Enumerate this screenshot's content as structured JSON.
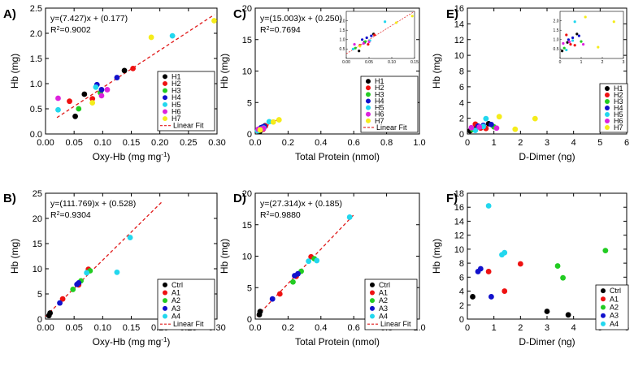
{
  "chart_data": [
    {
      "panel": "A)",
      "type": "scatter",
      "xlabel": "Oxy-Hb (mg mg",
      "xlabel_sup": "-1",
      "xlabel_end": ")",
      "ylabel": "Hb (mg)",
      "xlim": [
        0,
        0.3
      ],
      "ylim": [
        0,
        2.5
      ],
      "xticks": [
        0,
        0.05,
        0.1,
        0.15,
        0.2,
        0.25,
        0.3
      ],
      "xtick_labels": [
        "0.00",
        "0.05",
        "0.10",
        "0.15",
        "0.20",
        "0.25",
        "0.30"
      ],
      "yticks": [
        0,
        0.5,
        1,
        1.5,
        2,
        2.5
      ],
      "ytick_labels": [
        "0.0",
        "0.5",
        "1.0",
        "1.5",
        "2.0",
        "2.5"
      ],
      "equation": "y=(7.427)x + (0.177)",
      "r2_label": "R",
      "r2_sup": "2",
      "r2_value": "=0.9002",
      "fit": {
        "slope": 7.427,
        "intercept": 0.177,
        "x_range": [
          0.02,
          0.295
        ]
      },
      "legend_fit": "Linear Fit",
      "series": [
        {
          "name": "H1",
          "color": "#000000",
          "points": [
            [
              0.052,
              0.35
            ],
            [
              0.068,
              0.79
            ],
            [
              0.138,
              1.26
            ]
          ]
        },
        {
          "name": "H2",
          "color": "#ee1111",
          "points": [
            [
              0.042,
              0.65
            ],
            [
              0.082,
              0.7
            ],
            [
              0.153,
              1.3
            ]
          ]
        },
        {
          "name": "H3",
          "color": "#22cc22",
          "points": [
            [
              0.058,
              0.5
            ],
            [
              0.096,
              0.82
            ]
          ]
        },
        {
          "name": "H4",
          "color": "#1111cc",
          "points": [
            [
              0.09,
              0.98
            ],
            [
              0.098,
              0.88
            ],
            [
              0.125,
              1.12
            ]
          ]
        },
        {
          "name": "H5",
          "color": "#22d7ee",
          "points": [
            [
              0.022,
              0.48
            ],
            [
              0.088,
              0.93
            ],
            [
              0.222,
              1.95
            ]
          ]
        },
        {
          "name": "H6",
          "color": "#dd22dd",
          "points": [
            [
              0.022,
              0.71
            ],
            [
              0.098,
              0.76
            ],
            [
              0.108,
              0.88
            ]
          ]
        },
        {
          "name": "H7",
          "color": "#f5ec1a",
          "points": [
            [
              0.082,
              0.62
            ],
            [
              0.185,
              1.92
            ],
            [
              0.295,
              2.25
            ]
          ]
        }
      ]
    },
    {
      "panel": "B)",
      "type": "scatter",
      "xlabel": "Oxy-Hb (mg mg",
      "xlabel_sup": "-1",
      "xlabel_end": ")",
      "ylabel": "Hb (mg)",
      "xlim": [
        0,
        0.3
      ],
      "ylim": [
        0,
        25
      ],
      "xticks": [
        0,
        0.05,
        0.1,
        0.15,
        0.2,
        0.25,
        0.3
      ],
      "xtick_labels": [
        "0.00",
        "0.05",
        "0.10",
        "0.15",
        "0.20",
        "0.25",
        "0.30"
      ],
      "yticks": [
        0,
        5,
        10,
        15,
        20,
        25
      ],
      "ytick_labels": [
        "0",
        "5",
        "10",
        "15",
        "20",
        "25"
      ],
      "equation": "y=(111.769)x + (0.528)",
      "r2_label": "R",
      "r2_sup": "2",
      "r2_value": "=0.9304",
      "fit": {
        "slope": 111.769,
        "intercept": 0.528,
        "x_range": [
          0.0,
          0.205
        ]
      },
      "legend_fit": "Linear Fit",
      "series": [
        {
          "name": "Ctrl",
          "color": "#000000",
          "points": [
            [
              0.006,
              0.7
            ],
            [
              0.008,
              1.2
            ]
          ]
        },
        {
          "name": "A1",
          "color": "#ee1111",
          "points": [
            [
              0.03,
              4.0
            ],
            [
              0.058,
              6.8
            ],
            [
              0.075,
              9.9
            ]
          ]
        },
        {
          "name": "A2",
          "color": "#22cc22",
          "points": [
            [
              0.048,
              5.9
            ],
            [
              0.062,
              7.6
            ],
            [
              0.078,
              9.6
            ]
          ]
        },
        {
          "name": "A3",
          "color": "#1111cc",
          "points": [
            [
              0.025,
              3.2
            ],
            [
              0.055,
              6.9
            ],
            [
              0.058,
              7.2
            ]
          ]
        },
        {
          "name": "A4",
          "color": "#22d7ee",
          "points": [
            [
              0.072,
              9.2
            ],
            [
              0.125,
              9.3
            ],
            [
              0.148,
              16.2
            ]
          ]
        }
      ]
    },
    {
      "panel": "C)",
      "type": "scatter",
      "xlabel": "Total Protein (nmol)",
      "ylabel": "Hb (mg)",
      "xlim": [
        0,
        1.0
      ],
      "ylim": [
        0,
        20
      ],
      "xticks": [
        0,
        0.2,
        0.4,
        0.6,
        0.8,
        1.0
      ],
      "xtick_labels": [
        "0.0",
        "0.2",
        "0.4",
        "0.6",
        "0.8",
        "1.0"
      ],
      "yticks": [
        0,
        5,
        10,
        15,
        20
      ],
      "ytick_labels": [
        "0",
        "5",
        "10",
        "15",
        "20"
      ],
      "equation": "y=(15.003)x + (0.250)",
      "r2_label": "R",
      "r2_sup": "2",
      "r2_value": "=0.7694",
      "fit": {
        "slope": 15.003,
        "intercept": 0.25,
        "x_range": [
          0.005,
          0.15
        ]
      },
      "legend_fit": "Linear Fit",
      "inset": {
        "xlim": [
          0,
          0.15
        ],
        "ylim": [
          0,
          2.5
        ],
        "xticks": [
          0,
          0.05,
          0.1,
          0.15
        ],
        "xtick_labels": [
          "0.00",
          "0.05",
          "0.10",
          "0.15"
        ],
        "yticks": [
          0.5,
          1,
          1.5,
          2
        ],
        "ytick_labels": [
          "0.5",
          "1.0",
          "1.5",
          "2.0"
        ]
      },
      "series": [
        {
          "name": "H1",
          "color": "#000000",
          "points": [
            [
              0.028,
              0.4
            ],
            [
              0.04,
              0.85
            ],
            [
              0.06,
              1.3
            ]
          ]
        },
        {
          "name": "H2",
          "color": "#ee1111",
          "points": [
            [
              0.03,
              0.7
            ],
            [
              0.048,
              0.75
            ],
            [
              0.062,
              1.25
            ]
          ]
        },
        {
          "name": "H3",
          "color": "#22cc22",
          "points": [
            [
              0.02,
              0.55
            ],
            [
              0.042,
              0.9
            ]
          ]
        },
        {
          "name": "H4",
          "color": "#1111cc",
          "points": [
            [
              0.035,
              1.0
            ],
            [
              0.045,
              1.1
            ],
            [
              0.055,
              1.2
            ]
          ]
        },
        {
          "name": "H5",
          "color": "#22d7ee",
          "points": [
            [
              0.015,
              0.5
            ],
            [
              0.052,
              0.95
            ],
            [
              0.085,
              1.95
            ]
          ]
        },
        {
          "name": "H6",
          "color": "#dd22dd",
          "points": [
            [
              0.018,
              0.75
            ],
            [
              0.038,
              0.8
            ],
            [
              0.05,
              0.88
            ]
          ]
        },
        {
          "name": "H7",
          "color": "#f5ec1a",
          "points": [
            [
              0.03,
              0.65
            ],
            [
              0.11,
              1.9
            ],
            [
              0.145,
              2.25
            ]
          ]
        }
      ]
    },
    {
      "panel": "D)",
      "type": "scatter",
      "xlabel": "Total Protein (nmol)",
      "ylabel": "Hb (mg)",
      "xlim": [
        0,
        1.0
      ],
      "ylim": [
        0,
        20
      ],
      "xticks": [
        0,
        0.2,
        0.4,
        0.6,
        0.8,
        1.0
      ],
      "xtick_labels": [
        "0.0",
        "0.2",
        "0.4",
        "0.6",
        "0.8",
        "1.0"
      ],
      "yticks": [
        0,
        5,
        10,
        15,
        20
      ],
      "ytick_labels": [
        "0",
        "5",
        "10",
        "15",
        "20"
      ],
      "equation": "y=(27.314)x + (0.185)",
      "r2_label": "R",
      "r2_sup": "2",
      "r2_value": "=0.9880",
      "fit": {
        "slope": 27.314,
        "intercept": 0.185,
        "x_range": [
          0.01,
          0.6
        ]
      },
      "legend_fit": "Linear Fit",
      "series": [
        {
          "name": "Ctrl",
          "color": "#000000",
          "points": [
            [
              0.025,
              0.7
            ],
            [
              0.03,
              1.2
            ]
          ]
        },
        {
          "name": "A1",
          "color": "#ee1111",
          "points": [
            [
              0.15,
              4.0
            ],
            [
              0.25,
              6.8
            ],
            [
              0.34,
              9.9
            ]
          ]
        },
        {
          "name": "A2",
          "color": "#22cc22",
          "points": [
            [
              0.23,
              5.9
            ],
            [
              0.28,
              7.6
            ],
            [
              0.36,
              9.6
            ]
          ]
        },
        {
          "name": "A3",
          "color": "#1111cc",
          "points": [
            [
              0.105,
              3.2
            ],
            [
              0.24,
              6.9
            ],
            [
              0.26,
              7.2
            ]
          ]
        },
        {
          "name": "A4",
          "color": "#22d7ee",
          "points": [
            [
              0.325,
              9.2
            ],
            [
              0.375,
              9.3
            ],
            [
              0.575,
              16.2
            ]
          ]
        }
      ]
    },
    {
      "panel": "E)",
      "type": "scatter",
      "xlabel": "D-Dimer (ng)",
      "ylabel": "Hb (mg)",
      "xlim": [
        0,
        6
      ],
      "ylim": [
        0,
        16
      ],
      "xticks": [
        0,
        1,
        2,
        3,
        4,
        5,
        6
      ],
      "xtick_labels": [
        "0",
        "1",
        "2",
        "3",
        "4",
        "5",
        "6"
      ],
      "yticks": [
        0,
        2,
        4,
        6,
        8,
        10,
        12,
        14,
        16
      ],
      "ytick_labels": [
        "0",
        "2",
        "4",
        "6",
        "8",
        "10",
        "12",
        "14",
        "16"
      ],
      "inset": {
        "xlim": [
          0,
          3
        ],
        "ylim": [
          0,
          2.5
        ],
        "xticks": [
          0,
          1,
          2,
          3
        ],
        "xtick_labels": [
          "0",
          "1",
          "2",
          "3"
        ],
        "yticks": [
          0.5,
          1,
          1.5,
          2
        ],
        "ytick_labels": [
          "0.5",
          "1.0",
          "1.5",
          "2.0"
        ]
      },
      "series": [
        {
          "name": "H1",
          "color": "#000000",
          "points": [
            [
              0.1,
              0.4
            ],
            [
              0.35,
              0.85
            ],
            [
              0.8,
              1.3
            ]
          ]
        },
        {
          "name": "H2",
          "color": "#ee1111",
          "points": [
            [
              0.3,
              1.25
            ],
            [
              0.5,
              0.75
            ],
            [
              0.7,
              0.7
            ]
          ]
        },
        {
          "name": "H3",
          "color": "#22cc22",
          "points": [
            [
              0.2,
              0.55
            ],
            [
              1.0,
              0.9
            ]
          ]
        },
        {
          "name": "H4",
          "color": "#1111cc",
          "points": [
            [
              0.4,
              1.0
            ],
            [
              0.6,
              1.1
            ],
            [
              0.9,
              1.2
            ]
          ]
        },
        {
          "name": "H5",
          "color": "#22d7ee",
          "points": [
            [
              0.3,
              0.45
            ],
            [
              0.6,
              0.95
            ],
            [
              0.7,
              1.95
            ]
          ]
        },
        {
          "name": "H6",
          "color": "#dd22dd",
          "points": [
            [
              0.15,
              0.8
            ],
            [
              0.45,
              0.88
            ],
            [
              1.1,
              0.75
            ]
          ]
        },
        {
          "name": "H7",
          "color": "#f5ec1a",
          "points": [
            [
              1.2,
              2.2
            ],
            [
              1.8,
              0.6
            ],
            [
              2.55,
              1.95
            ]
          ]
        }
      ]
    },
    {
      "panel": "F)",
      "type": "scatter",
      "xlabel": "D-Dimer (ng)",
      "ylabel": "Hb (mg)",
      "xlim": [
        0,
        6
      ],
      "ylim": [
        0,
        18
      ],
      "xticks": [
        0,
        1,
        2,
        3,
        4,
        5,
        6
      ],
      "xtick_labels": [
        "0",
        "1",
        "2",
        "3",
        "4",
        "5",
        "6"
      ],
      "yticks": [
        0,
        2,
        4,
        6,
        8,
        10,
        12,
        14,
        16,
        18
      ],
      "ytick_labels": [
        "0",
        "2",
        "4",
        "6",
        "8",
        "10",
        "12",
        "14",
        "16",
        "18"
      ],
      "series": [
        {
          "name": "Ctrl",
          "color": "#000000",
          "points": [
            [
              0.2,
              3.2
            ],
            [
              3.0,
              1.1
            ],
            [
              3.8,
              0.6
            ]
          ]
        },
        {
          "name": "A1",
          "color": "#ee1111",
          "points": [
            [
              0.8,
              6.8
            ],
            [
              1.4,
              4.0
            ],
            [
              2.0,
              7.9
            ]
          ]
        },
        {
          "name": "A2",
          "color": "#22cc22",
          "points": [
            [
              3.4,
              7.6
            ],
            [
              3.6,
              5.9
            ],
            [
              5.2,
              9.8
            ]
          ]
        },
        {
          "name": "A3",
          "color": "#1111cc",
          "points": [
            [
              0.4,
              6.8
            ],
            [
              0.5,
              7.2
            ],
            [
              0.9,
              3.2
            ]
          ]
        },
        {
          "name": "A4",
          "color": "#22d7ee",
          "points": [
            [
              0.8,
              16.2
            ],
            [
              1.3,
              9.2
            ],
            [
              1.4,
              9.5
            ]
          ]
        }
      ]
    }
  ]
}
